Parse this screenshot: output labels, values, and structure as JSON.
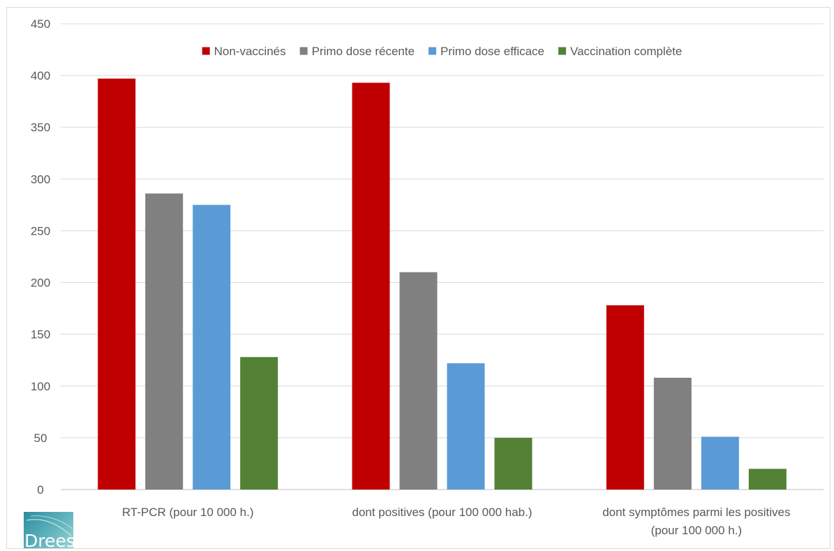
{
  "chart_data": {
    "type": "bar",
    "title": "",
    "xlabel": "",
    "ylabel": "",
    "ylim": [
      0,
      450
    ],
    "y_ticks": [
      "0",
      "50",
      "100",
      "150",
      "200",
      "250",
      "300",
      "350",
      "400",
      "450"
    ],
    "grid": true,
    "legend_position": "top",
    "categories": [
      [
        "RT-PCR (pour 10 000 h.)"
      ],
      [
        "dont positives (pour 100 000 hab.)"
      ],
      [
        "dont symptômes parmi les positives",
        "(pour 100 000 h.)"
      ]
    ],
    "series": [
      {
        "name": "Non-vaccinés",
        "color": "#c00000",
        "values": [
          397,
          393,
          178
        ]
      },
      {
        "name": "Primo dose récente",
        "color": "#808080",
        "values": [
          286,
          210,
          108
        ]
      },
      {
        "name": "Primo dose efficace",
        "color": "#5b9bd5",
        "values": [
          275,
          122,
          51
        ]
      },
      {
        "name": "Vaccination complète",
        "color": "#538135",
        "values": [
          128,
          50,
          20
        ]
      }
    ]
  },
  "logo": {
    "text": "Drees",
    "icon": "drees-logo"
  }
}
